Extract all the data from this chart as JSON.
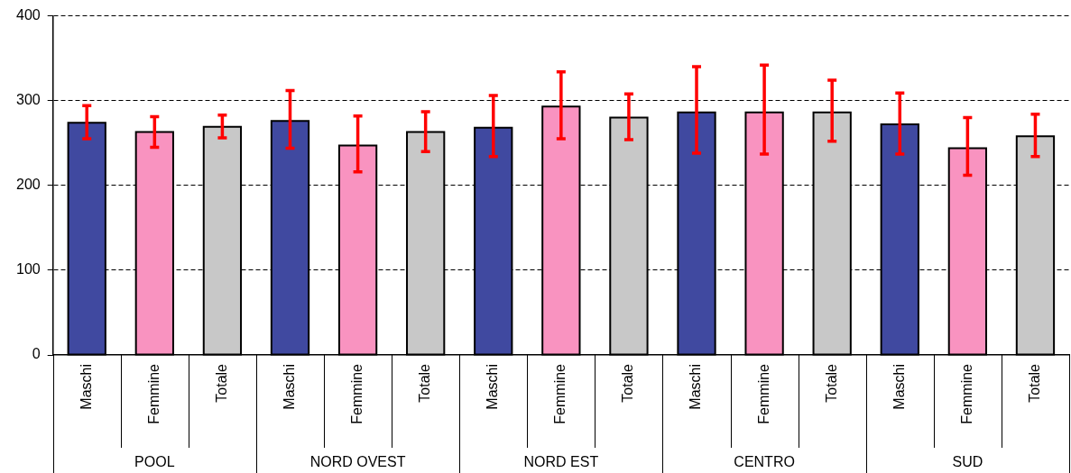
{
  "chart_data": {
    "type": "bar",
    "categories": [
      "Maschi",
      "Femmine",
      "Totale",
      "Maschi",
      "Femmine",
      "Totale",
      "Maschi",
      "Femmine",
      "Totale",
      "Maschi",
      "Femmine",
      "Totale",
      "Maschi",
      "Femmine",
      "Totale"
    ],
    "values": [
      274,
      263,
      269,
      276,
      247,
      263,
      268,
      293,
      280,
      286,
      286,
      286,
      272,
      244,
      258
    ],
    "colors": [
      "#4049a0",
      "#f993c0",
      "#c8c8c8",
      "#4049a0",
      "#f993c0",
      "#c8c8c8",
      "#4049a0",
      "#f993c0",
      "#c8c8c8",
      "#4049a0",
      "#f993c0",
      "#c8c8c8",
      "#4049a0",
      "#f993c0",
      "#c8c8c8"
    ],
    "errors": [
      [
        255,
        294
      ],
      [
        245,
        281
      ],
      [
        256,
        283
      ],
      [
        244,
        312
      ],
      [
        216,
        282
      ],
      [
        240,
        287
      ],
      [
        234,
        306
      ],
      [
        255,
        334
      ],
      [
        254,
        308
      ],
      [
        238,
        340
      ],
      [
        237,
        342
      ],
      [
        252,
        324
      ],
      [
        237,
        309
      ],
      [
        212,
        280
      ],
      [
        234,
        284
      ]
    ],
    "annotations": [
      "POOL",
      "NORD OVEST",
      "NORD EST",
      "CENTRO",
      "SUD"
    ],
    "ylim": [
      0,
      400
    ],
    "yticks": [
      0,
      100,
      200,
      300,
      400
    ],
    "grid": "y",
    "legend": false
  }
}
